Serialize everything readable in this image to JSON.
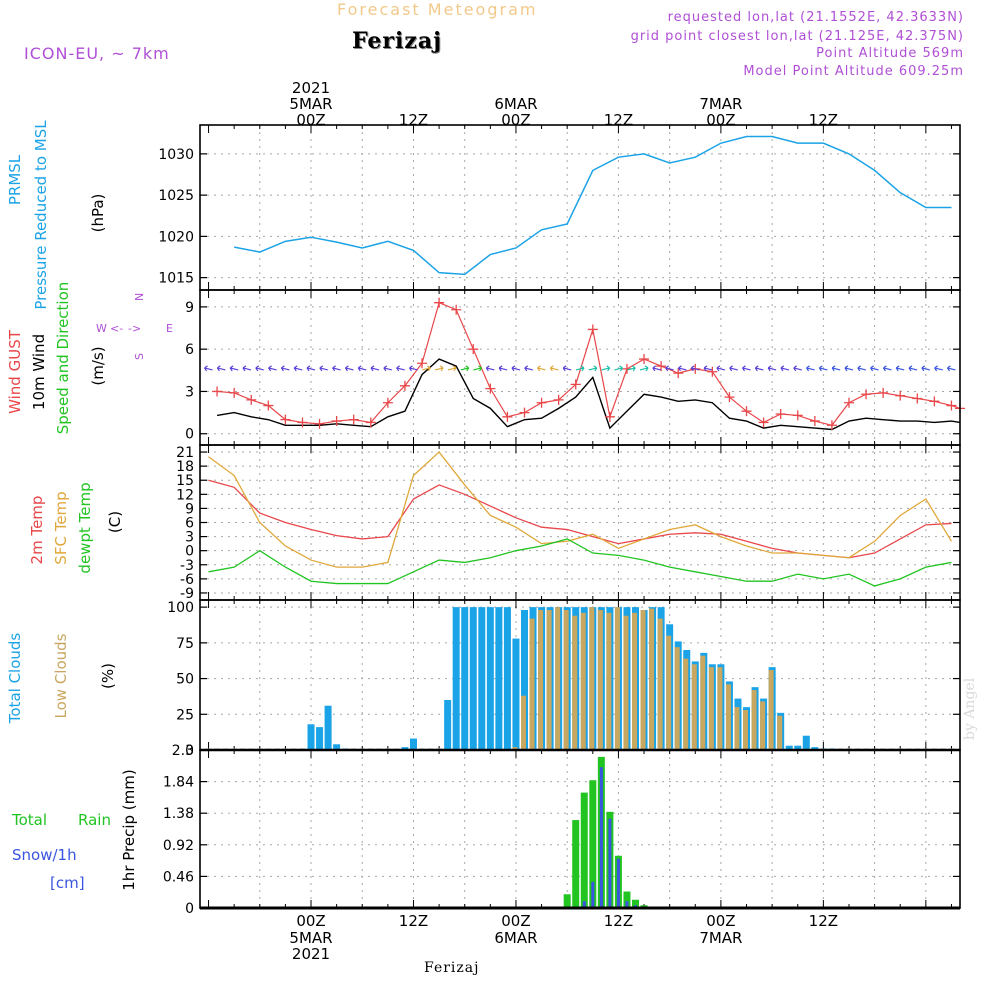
{
  "header": {
    "title": "Forecast Meteogram",
    "station": "Ferizaj",
    "model": "ICON-EU, ~ 7km",
    "requested": "requested lon,lat (21.1552E, 42.3633N)",
    "grid_point": "grid point closest lon,lat (21.125E, 42.375N)",
    "point_altitude": "Point Altitude 569m",
    "model_altitude": "Model Point Altitude 609.25m"
  },
  "footer": {
    "station": "Ferizaj",
    "credit": "by Angel"
  },
  "colors": {
    "pressure": "#1aa3e6",
    "gust": "#e8474a",
    "wind10m": "#000000",
    "temp2m": "#e8474a",
    "sfc_temp": "#e0a83a",
    "dewpoint": "#22c422",
    "total_clouds": "#1aa3e6",
    "low_clouds": "#c8a860",
    "rain": "#22c422",
    "snow": "#3a55e0",
    "label_purple": "#b04fd6"
  },
  "chart_data": [
    {
      "id": "pressure",
      "type": "line",
      "labels": [
        "PRMSL",
        "Pressure Reduced to MSL"
      ],
      "unit": "(hPa)",
      "ylim": [
        1013.5,
        1033.5
      ],
      "yticks": [
        1015,
        1020,
        1025,
        1030
      ],
      "x": [
        -9,
        -6,
        -3,
        0,
        3,
        6,
        9,
        12,
        15,
        18,
        21,
        24,
        27,
        30,
        33,
        36,
        39,
        42,
        45,
        48,
        51,
        54,
        57,
        60,
        63,
        66,
        69,
        72,
        75
      ],
      "series": [
        {
          "values": [
            1018.7,
            1018.1,
            1019.4,
            1019.9,
            1019.3,
            1018.6,
            1019.4,
            1018.3,
            1015.6,
            1015.4,
            1017.8,
            1018.6,
            1020.8,
            1021.5,
            1028.0,
            1029.6,
            1030.0,
            1028.9,
            1029.6,
            1031.3,
            1032.1,
            1032.1,
            1031.3,
            1031.3,
            1030.0,
            1028.0,
            1025.3,
            1023.5,
            1023.5
          ]
        }
      ]
    },
    {
      "id": "wind",
      "type": "line",
      "labels": [
        "Wind GUST",
        "10m Wind",
        "Speed and Direction"
      ],
      "unit": "(m/s)",
      "compass": {
        "n": "N",
        "s": "S",
        "w": "W",
        "e": "E"
      },
      "ylim": [
        -0.8,
        10.2
      ],
      "yticks": [
        0,
        3,
        6,
        9
      ],
      "x": [
        -11,
        -9,
        -7,
        -5,
        -3,
        -1,
        1,
        3,
        5,
        7,
        9,
        11,
        13,
        15,
        17,
        19,
        21,
        23,
        25,
        27,
        29,
        31,
        33,
        35,
        37,
        39,
        41,
        43,
        45,
        47,
        49,
        51,
        53,
        55,
        57,
        59,
        61,
        63,
        65,
        67,
        69,
        71,
        73,
        75,
        76
      ],
      "series": [
        {
          "name": "Wind GUST",
          "values": [
            3.0,
            2.9,
            2.4,
            2.0,
            1.0,
            0.8,
            0.7,
            0.9,
            1.0,
            0.8,
            2.2,
            3.4,
            5.0,
            9.3,
            8.8,
            6.0,
            3.2,
            1.2,
            1.5,
            2.2,
            2.4,
            3.5,
            7.4,
            1.2,
            4.6,
            5.3,
            4.8,
            4.3,
            4.6,
            4.4,
            2.6,
            1.6,
            0.8,
            1.4,
            1.3,
            0.9,
            0.6,
            2.2,
            2.8,
            2.9,
            2.7,
            2.5,
            2.3,
            2.0,
            1.8
          ]
        },
        {
          "name": "10m Wind",
          "values": [
            1.3,
            1.5,
            1.2,
            1.0,
            0.6,
            0.6,
            0.6,
            0.7,
            0.6,
            0.5,
            1.2,
            1.6,
            4.2,
            5.3,
            4.8,
            2.5,
            1.8,
            0.5,
            1.0,
            1.1,
            1.8,
            2.6,
            4.0,
            0.4,
            1.6,
            2.8,
            2.6,
            2.3,
            2.4,
            2.2,
            1.1,
            0.9,
            0.4,
            0.6,
            0.5,
            0.4,
            0.3,
            0.9,
            1.1,
            1.0,
            0.9,
            0.9,
            0.8,
            0.9,
            0.8
          ]
        }
      ]
    },
    {
      "id": "temperature",
      "type": "line",
      "labels": [
        "2m Temp",
        "SFC Temp",
        "dewpt Temp"
      ],
      "unit": "(C)",
      "ylim": [
        -10.5,
        22.5
      ],
      "yticks": [
        -9,
        -6,
        -3,
        0,
        3,
        6,
        9,
        12,
        15,
        18,
        21
      ],
      "x": [
        -12,
        -9,
        -6,
        -3,
        0,
        3,
        6,
        9,
        12,
        15,
        18,
        21,
        24,
        27,
        30,
        33,
        36,
        39,
        42,
        45,
        48,
        51,
        54,
        57,
        60,
        63,
        66,
        69,
        72,
        75
      ],
      "series": [
        {
          "name": "2m Temp",
          "values": [
            15.0,
            13.5,
            8.0,
            6.0,
            4.5,
            3.2,
            2.5,
            3.0,
            11.0,
            14.0,
            12.0,
            9.5,
            7.0,
            5.0,
            4.5,
            3.0,
            1.5,
            2.5,
            3.5,
            3.8,
            3.5,
            2.0,
            0.5,
            -0.5,
            -1.0,
            -1.5,
            -0.5,
            2.5,
            5.5,
            5.8
          ]
        },
        {
          "name": "SFC Temp",
          "values": [
            20.0,
            16.0,
            6.0,
            1.0,
            -2.0,
            -3.5,
            -3.5,
            -2.5,
            16.0,
            21.0,
            14.0,
            7.5,
            5.0,
            1.5,
            2.0,
            3.5,
            0.5,
            2.5,
            4.5,
            5.5,
            3.0,
            1.0,
            -0.5,
            -0.5,
            -1.0,
            -1.5,
            2.0,
            7.5,
            11.0,
            2.0
          ]
        },
        {
          "name": "dewpt Temp",
          "values": [
            -4.5,
            -3.5,
            0.0,
            -3.5,
            -6.5,
            -7.0,
            -7.0,
            -7.0,
            -4.5,
            -2.0,
            -2.5,
            -1.5,
            0.0,
            1.0,
            2.5,
            -0.5,
            -1.0,
            -2.0,
            -3.5,
            -4.5,
            -5.5,
            -6.5,
            -6.5,
            -5.0,
            -6.0,
            -5.0,
            -7.5,
            -6.0,
            -3.5,
            -2.5
          ]
        }
      ]
    },
    {
      "id": "clouds",
      "type": "bar",
      "labels": [
        "Total Clouds",
        "Low Clouds"
      ],
      "unit": "(%)",
      "ylim": [
        0,
        105
      ],
      "yticks": [
        0,
        25,
        50,
        75,
        100
      ],
      "x": [
        0,
        1,
        2,
        3,
        4,
        11,
        12,
        16,
        17,
        18,
        19,
        20,
        21,
        22,
        23,
        24,
        25,
        26,
        27,
        28,
        29,
        30,
        31,
        32,
        33,
        34,
        35,
        36,
        37,
        38,
        39,
        40,
        41,
        42,
        43,
        44,
        45,
        46,
        47,
        48,
        49,
        50,
        51,
        52,
        53,
        54,
        55,
        56,
        57,
        58,
        59,
        60,
        61,
        62,
        63,
        64,
        65,
        66,
        67
      ],
      "series": [
        {
          "name": "Total Clouds",
          "values": [
            18,
            16,
            31,
            4,
            1,
            2,
            8,
            35,
            100,
            100,
            100,
            100,
            100,
            100,
            100,
            78,
            98,
            100,
            100,
            100,
            100,
            100,
            100,
            100,
            100,
            100,
            100,
            100,
            100,
            100,
            98,
            100,
            100,
            88,
            76,
            70,
            62,
            68,
            60,
            60,
            48,
            36,
            30,
            44,
            36,
            58,
            26,
            3,
            3,
            10,
            2,
            1,
            1,
            0,
            0,
            0,
            0,
            0,
            0
          ]
        },
        {
          "name": "Low Clouds",
          "values": [
            0,
            0,
            0,
            0,
            0,
            0,
            0,
            0,
            0,
            0,
            0,
            0,
            0,
            0,
            0,
            2,
            38,
            92,
            98,
            98,
            100,
            98,
            94,
            96,
            100,
            98,
            96,
            100,
            94,
            96,
            98,
            99,
            92,
            80,
            72,
            64,
            60,
            66,
            58,
            58,
            46,
            30,
            28,
            42,
            34,
            56,
            24,
            0,
            0,
            0,
            0,
            0,
            0,
            0,
            0,
            0,
            0,
            0,
            0
          ]
        }
      ]
    },
    {
      "id": "precip",
      "type": "bar",
      "labels": [
        "Total",
        "Rain",
        "Snow/1h",
        "[cm]"
      ],
      "unit": "1hr Precip (mm)",
      "ylim": [
        0,
        2.3
      ],
      "yticks": [
        0,
        0.46,
        0.92,
        1.38,
        1.84,
        2.3
      ],
      "ytick_labels": [
        "0",
        "0.46",
        "0.92",
        "1.38",
        "1.84",
        "2.3"
      ],
      "x": [
        30,
        31,
        32,
        33,
        34,
        35,
        36,
        37,
        38,
        39,
        40
      ],
      "series": [
        {
          "name": "Total Rain",
          "values": [
            0.2,
            1.28,
            1.68,
            1.86,
            2.2,
            1.4,
            0.76,
            0.24,
            0.12,
            0.04,
            0.02
          ]
        },
        {
          "name": "Snow/1h",
          "values": [
            0,
            0,
            0.1,
            0.38,
            2.05,
            1.3,
            0.72,
            0.1,
            0.04,
            0,
            0
          ]
        }
      ]
    }
  ],
  "time_axis": {
    "day_labels": [
      {
        "hour": 0,
        "year": "2021",
        "day": "5MAR",
        "z": "00Z"
      },
      {
        "hour": 24,
        "day": "6MAR",
        "z": "00Z"
      },
      {
        "hour": 48,
        "day": "7MAR",
        "z": "00Z"
      }
    ],
    "half_labels": [
      {
        "hour": 12,
        "z": "12Z"
      },
      {
        "hour": 36,
        "z": "12Z"
      },
      {
        "hour": 60,
        "z": "12Z"
      }
    ]
  }
}
